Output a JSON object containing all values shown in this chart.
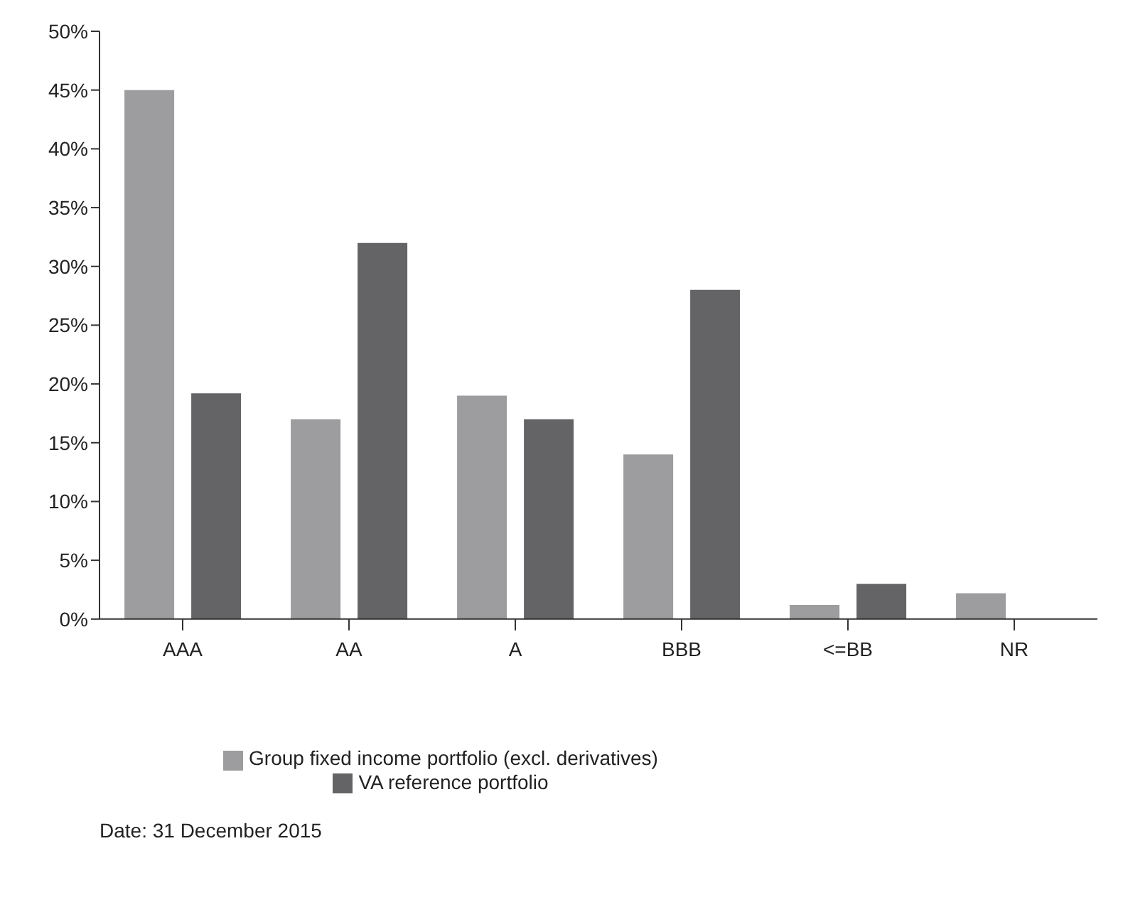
{
  "chart_data": {
    "type": "bar",
    "categories": [
      "AAA",
      "AA",
      "A",
      "BBB",
      "<=BB",
      "NR"
    ],
    "series": [
      {
        "name": "Group fixed income portfolio (excl. derivatives)",
        "color": "#9d9d9f",
        "values": [
          45,
          17,
          19,
          14,
          1.2,
          2.2
        ]
      },
      {
        "name": "VA reference portfolio",
        "color": "#646466",
        "values": [
          19.2,
          32,
          17,
          28,
          3,
          0
        ]
      }
    ],
    "ylim": [
      0,
      50
    ],
    "yticks": [
      {
        "value": 0,
        "label": "0%"
      },
      {
        "value": 5,
        "label": "5%"
      },
      {
        "value": 10,
        "label": "10%"
      },
      {
        "value": 15,
        "label": "15%"
      },
      {
        "value": 20,
        "label": "20%"
      },
      {
        "value": 25,
        "label": "25%"
      },
      {
        "value": 30,
        "label": "30%"
      },
      {
        "value": 35,
        "label": "35%"
      },
      {
        "value": 40,
        "label": "40%"
      },
      {
        "value": 45,
        "label": "45%"
      },
      {
        "value": 50,
        "label": "50%"
      }
    ],
    "grid": false,
    "legend": "bottom",
    "annotations": [
      "Date: 31 December 2015"
    ]
  }
}
